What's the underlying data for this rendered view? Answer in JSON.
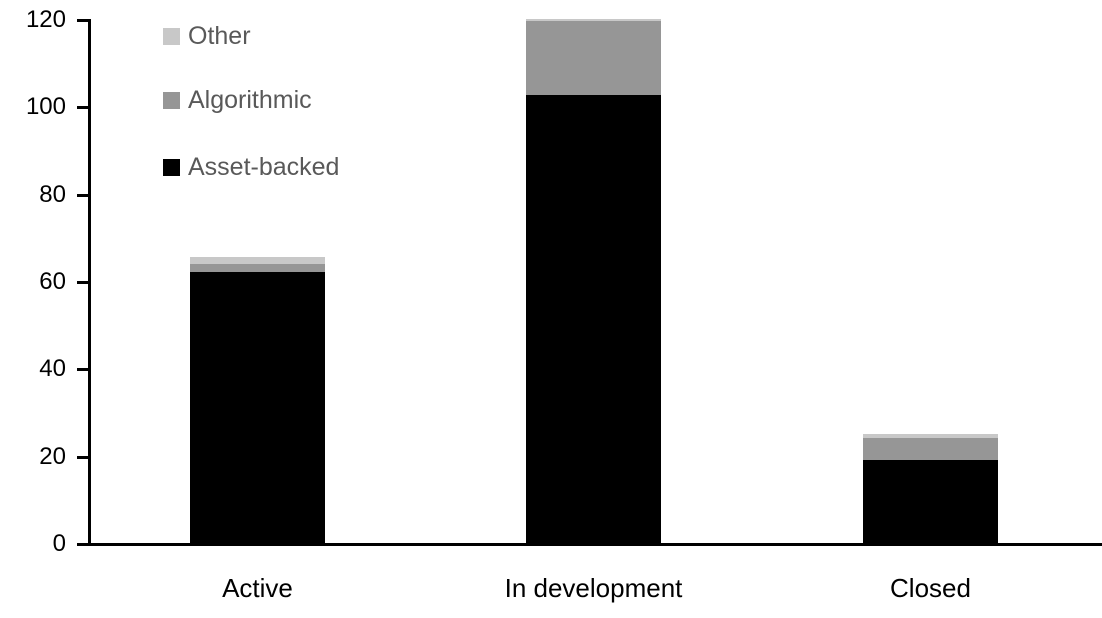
{
  "chart_data": {
    "type": "bar",
    "stacked": true,
    "title": "",
    "xlabel": "",
    "ylabel": "",
    "categories": [
      "Active",
      "In development",
      "Closed"
    ],
    "series": [
      {
        "name": "Asset-backed",
        "color": "#000000",
        "values": [
          62,
          102.5,
          19
        ]
      },
      {
        "name": "Algorithmic",
        "color": "#969696",
        "values": [
          2,
          17,
          5
        ]
      },
      {
        "name": "Other",
        "color": "#c8c8c8",
        "values": [
          1.5,
          0.5,
          1
        ]
      }
    ],
    "totals": [
      65.5,
      120,
      25
    ],
    "ylim": [
      0,
      120
    ],
    "y_ticks": [
      0,
      20,
      40,
      60,
      80,
      100,
      120
    ],
    "grid": false,
    "legend": {
      "position": "top-left",
      "entries": [
        "Other",
        "Algorithmic",
        "Asset-backed"
      ]
    }
  },
  "colors": {
    "background": "#ffffff",
    "axis": "#000000",
    "y_tick_label": "#000000",
    "x_label": "#000000",
    "legend_text": "#595959"
  }
}
